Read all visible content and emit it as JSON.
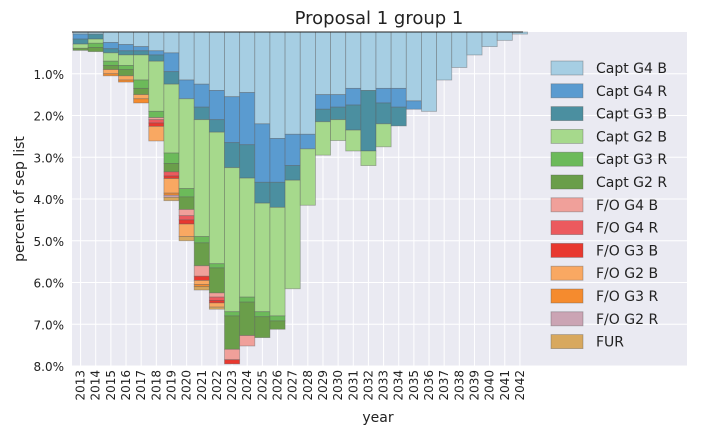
{
  "chart_data": {
    "type": "bar",
    "stacked": true,
    "title": "Proposal 1 group 1",
    "xlabel": "year",
    "ylabel": "percent of sep list",
    "y_inverted": true,
    "ylim": [
      0,
      8.0
    ],
    "x": [
      2013,
      2014,
      2015,
      2016,
      2017,
      2018,
      2019,
      2020,
      2021,
      2022,
      2023,
      2024,
      2025,
      2026,
      2027,
      2028,
      2029,
      2030,
      2031,
      2032,
      2033,
      2034,
      2035,
      2036,
      2037,
      2038,
      2039,
      2040,
      2041,
      2042
    ],
    "x_tick_labels": [
      "2013",
      "2014",
      "2015",
      "2016",
      "2017",
      "2018",
      "2019",
      "2020",
      "2021",
      "2022",
      "2023",
      "2024",
      "2025",
      "2026",
      "2027",
      "2028",
      "2029",
      "2030",
      "2031",
      "2032",
      "2033",
      "2034",
      "2035",
      "2036",
      "2037",
      "2038",
      "2039",
      "2040",
      "2041",
      "2042"
    ],
    "y_ticks": [
      1.0,
      2.0,
      3.0,
      4.0,
      5.0,
      6.0,
      7.0,
      8.0
    ],
    "y_tick_labels": [
      "1.0%",
      "2.0%",
      "3.0%",
      "4.0%",
      "5.0%",
      "6.0%",
      "7.0%",
      "8.0%"
    ],
    "grid": true,
    "legend_position": "right",
    "series": [
      {
        "name": "Capt G4 B",
        "color": "#a6cee3",
        "values": [
          0.05,
          0.05,
          0.25,
          0.3,
          0.35,
          0.45,
          0.5,
          1.15,
          1.25,
          1.4,
          1.55,
          1.45,
          2.2,
          2.55,
          2.45,
          2.45,
          1.5,
          1.5,
          1.35,
          1.4,
          1.35,
          1.35,
          1.65,
          1.9,
          1.15,
          0.85,
          0.55,
          0.35,
          0.2,
          0.05
        ]
      },
      {
        "name": "Capt G4 R",
        "color": "#5a9bd0",
        "values": [
          0.12,
          0,
          0.15,
          0.15,
          0.1,
          0.1,
          0.45,
          0.45,
          0.55,
          0.7,
          1.1,
          1.25,
          1.4,
          1.05,
          0.75,
          0.35,
          0.35,
          0.3,
          0.4,
          0,
          0.35,
          0.45,
          0.2,
          0,
          0,
          0,
          0,
          0,
          0,
          0
        ]
      },
      {
        "name": "Capt G3 B",
        "color": "#4b8fa0",
        "values": [
          0.12,
          0.12,
          0.1,
          0.1,
          0.1,
          0.15,
          0.3,
          0,
          0.3,
          0.3,
          0.6,
          0.8,
          0.5,
          0.6,
          0.35,
          0,
          0.3,
          0.3,
          0.6,
          1.45,
          0.5,
          0.45,
          0,
          0,
          0,
          0,
          0,
          0,
          0,
          0
        ]
      },
      {
        "name": "Capt G2 B",
        "color": "#a6d98c",
        "values": [
          0.1,
          0.1,
          0.2,
          0.25,
          0.6,
          1.2,
          1.65,
          2.15,
          2.8,
          3.15,
          3.45,
          2.85,
          2.6,
          2.6,
          2.6,
          1.35,
          0.8,
          0.5,
          0.5,
          0.35,
          0.55,
          0,
          0,
          0,
          0,
          0,
          0,
          0,
          0,
          0
        ]
      },
      {
        "name": "Capt G3 R",
        "color": "#6cba5a",
        "values": [
          0,
          0.1,
          0.1,
          0.1,
          0.2,
          0.15,
          0.25,
          0.2,
          0.15,
          0.1,
          0.1,
          0.12,
          0.12,
          0.12,
          0,
          0,
          0,
          0,
          0,
          0,
          0,
          0,
          0,
          0,
          0,
          0,
          0,
          0,
          0,
          0
        ]
      },
      {
        "name": "Capt G2 R",
        "color": "#6a9e4a",
        "values": [
          0.05,
          0.1,
          0.1,
          0.15,
          0.15,
          0,
          0.2,
          0.3,
          0.55,
          0.6,
          0.8,
          0.8,
          0.5,
          0.2,
          0,
          0,
          0,
          0,
          0,
          0,
          0,
          0,
          0,
          0,
          0,
          0,
          0,
          0,
          0,
          0
        ]
      },
      {
        "name": "F/O  G4 B",
        "color": "#f0a09a",
        "values": [
          0,
          0,
          0,
          0,
          0,
          0.05,
          0,
          0.15,
          0.25,
          0.1,
          0.25,
          0.25,
          0,
          0,
          0,
          0,
          0,
          0,
          0,
          0,
          0,
          0,
          0,
          0,
          0,
          0,
          0,
          0,
          0,
          0
        ]
      },
      {
        "name": "F/O  G4 R",
        "color": "#ec5a5e",
        "values": [
          0,
          0,
          0,
          0,
          0,
          0.08,
          0.1,
          0.1,
          0,
          0.08,
          0,
          0,
          0,
          0,
          0,
          0,
          0,
          0,
          0,
          0,
          0,
          0,
          0,
          0,
          0,
          0,
          0,
          0,
          0,
          0
        ]
      },
      {
        "name": "F/O  G3 B",
        "color": "#e8382f",
        "values": [
          0,
          0,
          0,
          0,
          0,
          0.08,
          0.06,
          0.1,
          0.1,
          0.06,
          0.1,
          0,
          0,
          0,
          0,
          0,
          0,
          0,
          0,
          0,
          0,
          0,
          0,
          0,
          0,
          0,
          0,
          0,
          0,
          0
        ]
      },
      {
        "name": "F/O  G2 B",
        "color": "#f9a862",
        "values": [
          0,
          0,
          0.1,
          0.1,
          0.1,
          0.35,
          0.35,
          0.3,
          0.1,
          0.1,
          0,
          0,
          0,
          0,
          0,
          0,
          0,
          0,
          0,
          0,
          0,
          0,
          0,
          0,
          0,
          0,
          0,
          0,
          0,
          0
        ]
      },
      {
        "name": "F/O  G3 R",
        "color": "#f58b2e",
        "values": [
          0,
          0,
          0.05,
          0.05,
          0.1,
          0,
          0.05,
          0,
          0.05,
          0,
          0,
          0,
          0,
          0,
          0,
          0,
          0,
          0,
          0,
          0,
          0,
          0,
          0,
          0,
          0,
          0,
          0,
          0,
          0,
          0
        ]
      },
      {
        "name": "F/O  G2 R",
        "color": "#cba4b4",
        "values": [
          0,
          0,
          0,
          0,
          0,
          0,
          0.05,
          0,
          0,
          0,
          0,
          0,
          0,
          0,
          0,
          0,
          0,
          0,
          0,
          0,
          0,
          0,
          0,
          0,
          0,
          0,
          0,
          0,
          0,
          0
        ]
      },
      {
        "name": "FUR",
        "color": "#d8a85e",
        "values": [
          0,
          0,
          0,
          0,
          0,
          0,
          0.08,
          0.1,
          0.08,
          0.05,
          0,
          0,
          0,
          0,
          0,
          0,
          0,
          0,
          0,
          0,
          0,
          0,
          0,
          0,
          0,
          0,
          0,
          0,
          0,
          0
        ]
      }
    ]
  }
}
